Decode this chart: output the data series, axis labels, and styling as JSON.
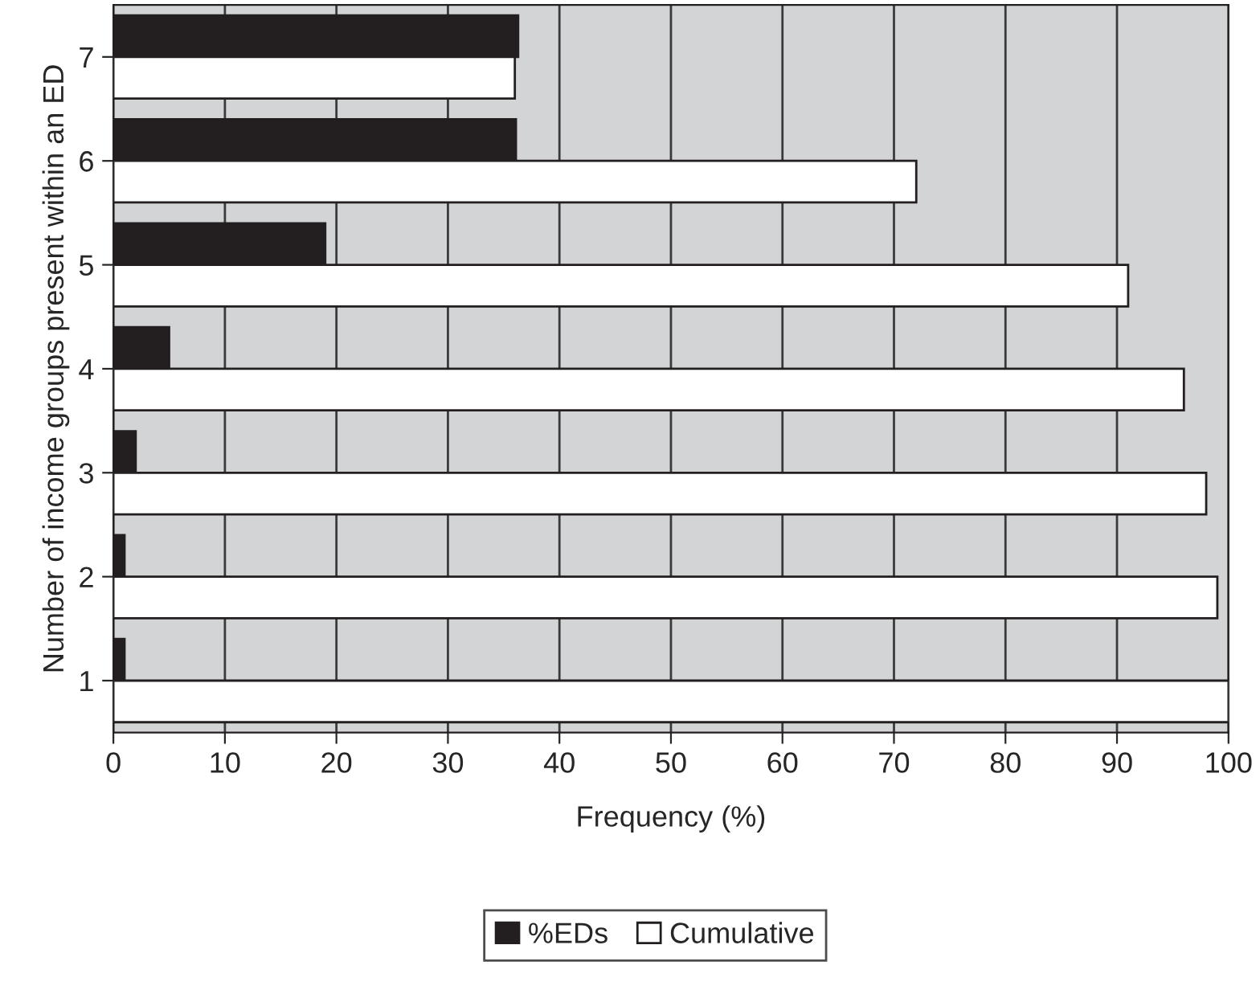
{
  "chart_data": {
    "type": "bar",
    "orientation": "horizontal",
    "xlabel": "Frequency (%)",
    "ylabel": "Number of income groups present within an ED",
    "categories": [
      "7",
      "6",
      "5",
      "4",
      "3",
      "2",
      "1"
    ],
    "series": [
      {
        "name": "%EDs",
        "color": "#231f20",
        "values": [
          36.3,
          36.1,
          19,
          5,
          2,
          1,
          1
        ]
      },
      {
        "name": "Cumulative",
        "color": "#ffffff",
        "values": [
          36,
          72,
          91,
          96,
          98,
          99,
          100
        ]
      }
    ],
    "xlim": [
      0,
      100
    ],
    "xticks": [
      0,
      10,
      20,
      30,
      40,
      50,
      60,
      70,
      80,
      90,
      100
    ],
    "grid": "x",
    "legend": "bottom"
  }
}
